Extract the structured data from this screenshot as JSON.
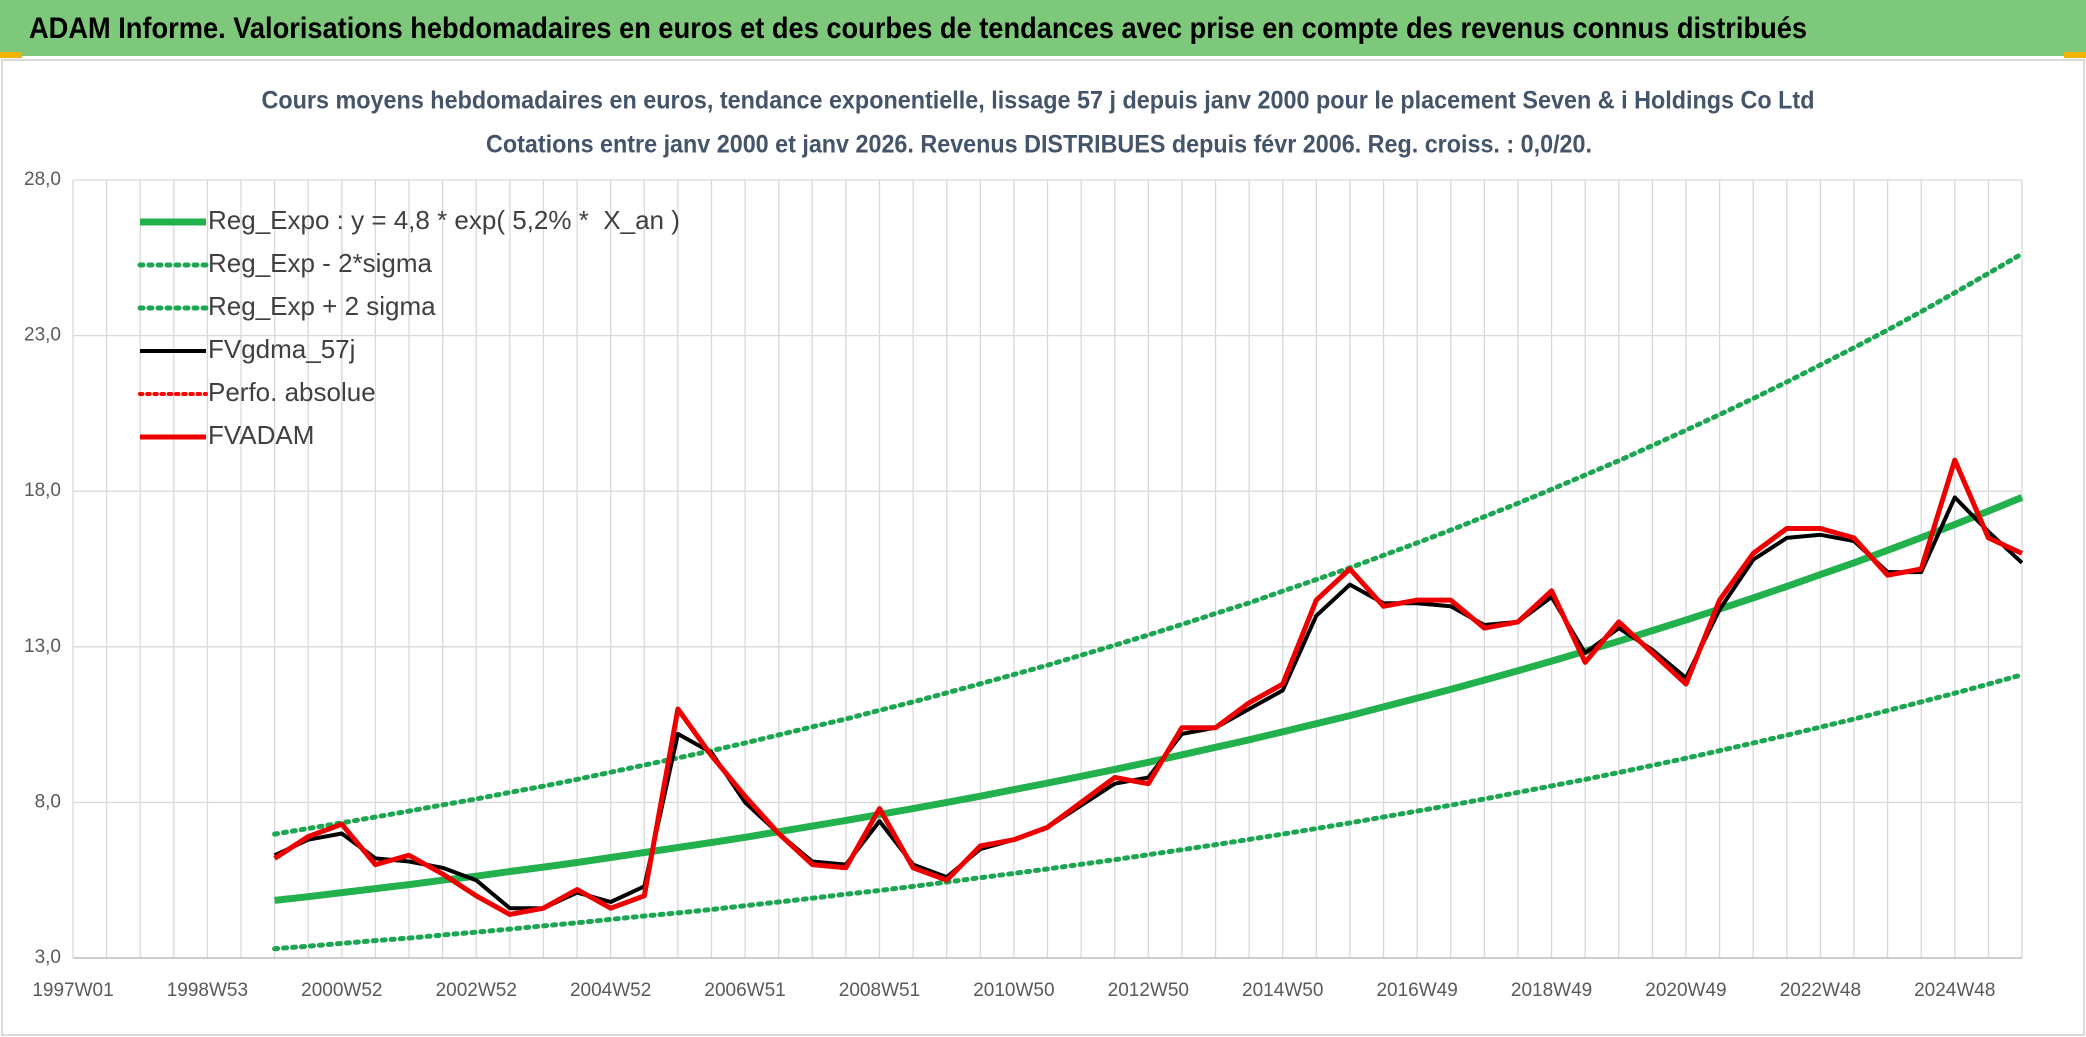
{
  "header": {
    "title": "ADAM Informe. Valorisations hebdomadaires en euros et des courbes de tendances avec prise en compte des revenus connus distribués"
  },
  "chart_data": {
    "type": "line",
    "title": "Cours moyens hebdomadaires en euros, tendance exponentielle, lissage 57 j depuis janv 2000 pour le placement Seven & i Holdings Co Ltd",
    "subtitle": "Cotations entre janv 2000 et janv 2026. Revenus DISTRIBUES depuis févr 2006. Reg. croiss. : 0,0/20.",
    "categories": [
      "1997W01",
      null,
      null,
      null,
      "1998W53",
      null,
      null,
      null,
      "2000W52",
      null,
      null,
      null,
      "2002W52",
      null,
      null,
      null,
      "2004W52",
      null,
      null,
      null,
      "2006W51",
      null,
      null,
      null,
      "2008W51",
      null,
      null,
      null,
      "2010W50",
      null,
      null,
      null,
      "2012W50",
      null,
      null,
      null,
      "2014W50",
      null,
      null,
      null,
      "2016W49",
      null,
      null,
      null,
      "2018W49",
      null,
      null,
      null,
      "2020W49",
      null,
      null,
      null,
      "2022W48",
      null,
      null,
      null,
      "2024W48",
      null,
      null
    ],
    "ylim": [
      3,
      28
    ],
    "yticks": [
      {
        "value": 3,
        "label": "3,0"
      },
      {
        "value": 8,
        "label": "8,0"
      },
      {
        "value": 13,
        "label": "13,0"
      },
      {
        "value": 18,
        "label": "18,0"
      },
      {
        "value": 23,
        "label": "23,0"
      },
      {
        "value": 28,
        "label": "28,0"
      }
    ],
    "grid": true,
    "legend": "top-left",
    "series": [
      {
        "name": "Reg_Expo : y = 4,8 * exp( 5,2% *  X_an )",
        "color": "#22b14c",
        "line_style": "solid",
        "values": [
          null,
          null,
          null,
          null,
          null,
          null,
          4.85,
          4.97,
          5.1,
          5.23,
          5.36,
          5.5,
          5.63,
          5.78,
          5.92,
          6.07,
          6.23,
          6.39,
          6.55,
          6.71,
          6.88,
          7.06,
          7.24,
          7.42,
          7.61,
          7.8,
          8.0,
          8.2,
          8.41,
          8.62,
          8.84,
          9.06,
          9.29,
          9.53,
          9.77,
          10.01,
          10.27,
          10.53,
          10.79,
          11.07,
          11.35,
          11.63,
          11.93,
          12.23,
          12.54,
          12.86,
          13.18,
          13.52,
          13.86,
          14.21,
          14.57,
          14.94,
          15.32,
          15.7,
          16.1,
          16.51,
          16.93,
          17.36,
          17.8
        ]
      },
      {
        "name": "Reg_Exp - 2*sigma",
        "color": "#1ca651",
        "line_style": "dotted",
        "values": [
          null,
          null,
          null,
          null,
          null,
          null,
          3.3,
          3.38,
          3.47,
          3.56,
          3.64,
          3.74,
          3.83,
          3.93,
          4.03,
          4.13,
          4.24,
          4.35,
          4.45,
          4.56,
          4.68,
          4.8,
          4.92,
          5.05,
          5.17,
          5.3,
          5.44,
          5.58,
          5.72,
          5.86,
          6.01,
          6.16,
          6.32,
          6.48,
          6.64,
          6.81,
          6.98,
          7.16,
          7.34,
          7.53,
          7.72,
          7.91,
          8.11,
          8.32,
          8.53,
          8.74,
          8.96,
          9.19,
          9.42,
          9.66,
          9.91,
          10.16,
          10.42,
          10.68,
          10.95,
          11.23,
          11.51,
          11.8,
          12.1
        ]
      },
      {
        "name": "Reg_Exp + 2 sigma",
        "color": "#1ca651",
        "line_style": "dotted",
        "values": [
          null,
          null,
          null,
          null,
          null,
          null,
          6.98,
          7.16,
          7.34,
          7.53,
          7.72,
          7.92,
          8.11,
          8.32,
          8.52,
          8.74,
          8.97,
          9.2,
          9.43,
          9.66,
          9.91,
          10.17,
          10.43,
          10.68,
          10.96,
          11.23,
          11.52,
          11.81,
          12.11,
          12.41,
          12.73,
          13.05,
          13.38,
          13.72,
          14.07,
          14.41,
          14.79,
          15.16,
          15.54,
          15.94,
          16.34,
          16.75,
          17.18,
          17.61,
          18.06,
          18.52,
          18.98,
          19.47,
          19.96,
          20.46,
          20.98,
          21.51,
          22.06,
          22.61,
          23.18,
          23.77,
          24.38,
          25.0,
          25.63
        ]
      },
      {
        "name": "FVgdma_57j",
        "color": "#000000",
        "line_style": "solid",
        "values": [
          null,
          null,
          null,
          null,
          null,
          null,
          6.3,
          6.8,
          7.0,
          6.2,
          6.1,
          5.9,
          5.5,
          4.6,
          4.6,
          5.1,
          4.8,
          5.3,
          10.2,
          9.6,
          8.0,
          7.0,
          6.1,
          6.0,
          7.4,
          6.0,
          5.6,
          6.5,
          6.8,
          7.2,
          7.9,
          8.6,
          8.8,
          10.2,
          10.4,
          11.0,
          11.6,
          14.0,
          15.0,
          14.4,
          14.4,
          14.3,
          13.7,
          13.8,
          14.6,
          12.8,
          13.6,
          12.9,
          12.0,
          14.2,
          15.8,
          16.5,
          16.6,
          16.4,
          15.4,
          15.4,
          17.8,
          16.7,
          15.7
        ]
      },
      {
        "name": "Perfo. absolue",
        "color": "#ff0000",
        "line_style": "dotted",
        "values": [
          null,
          null,
          null,
          null,
          null,
          null,
          null,
          null,
          null,
          null,
          null,
          null,
          null,
          null,
          null,
          null,
          null,
          null,
          null,
          null,
          null,
          null,
          null,
          null,
          null,
          null,
          null,
          null,
          null,
          null,
          null,
          null,
          null,
          null,
          null,
          null,
          null,
          null,
          null,
          null,
          null,
          null,
          null,
          null,
          null,
          null,
          null,
          null,
          null,
          null,
          null,
          null,
          null,
          null,
          null,
          null,
          null,
          null,
          null
        ]
      },
      {
        "name": "FVADAM",
        "color": "#ee0000",
        "line_style": "solid",
        "values": [
          null,
          null,
          null,
          null,
          null,
          null,
          6.2,
          6.9,
          7.3,
          6.0,
          6.3,
          5.7,
          5.0,
          4.4,
          4.6,
          5.2,
          4.6,
          5.0,
          11.0,
          9.5,
          8.2,
          7.0,
          6.0,
          5.9,
          7.8,
          5.9,
          5.5,
          6.6,
          6.8,
          7.2,
          8.0,
          8.8,
          8.6,
          10.4,
          10.4,
          11.2,
          11.8,
          14.5,
          15.5,
          14.3,
          14.5,
          14.5,
          13.6,
          13.8,
          14.8,
          12.5,
          13.8,
          12.8,
          11.8,
          14.5,
          16.0,
          16.8,
          16.8,
          16.5,
          15.3,
          15.5,
          19.0,
          16.5,
          16.0
        ]
      }
    ]
  }
}
